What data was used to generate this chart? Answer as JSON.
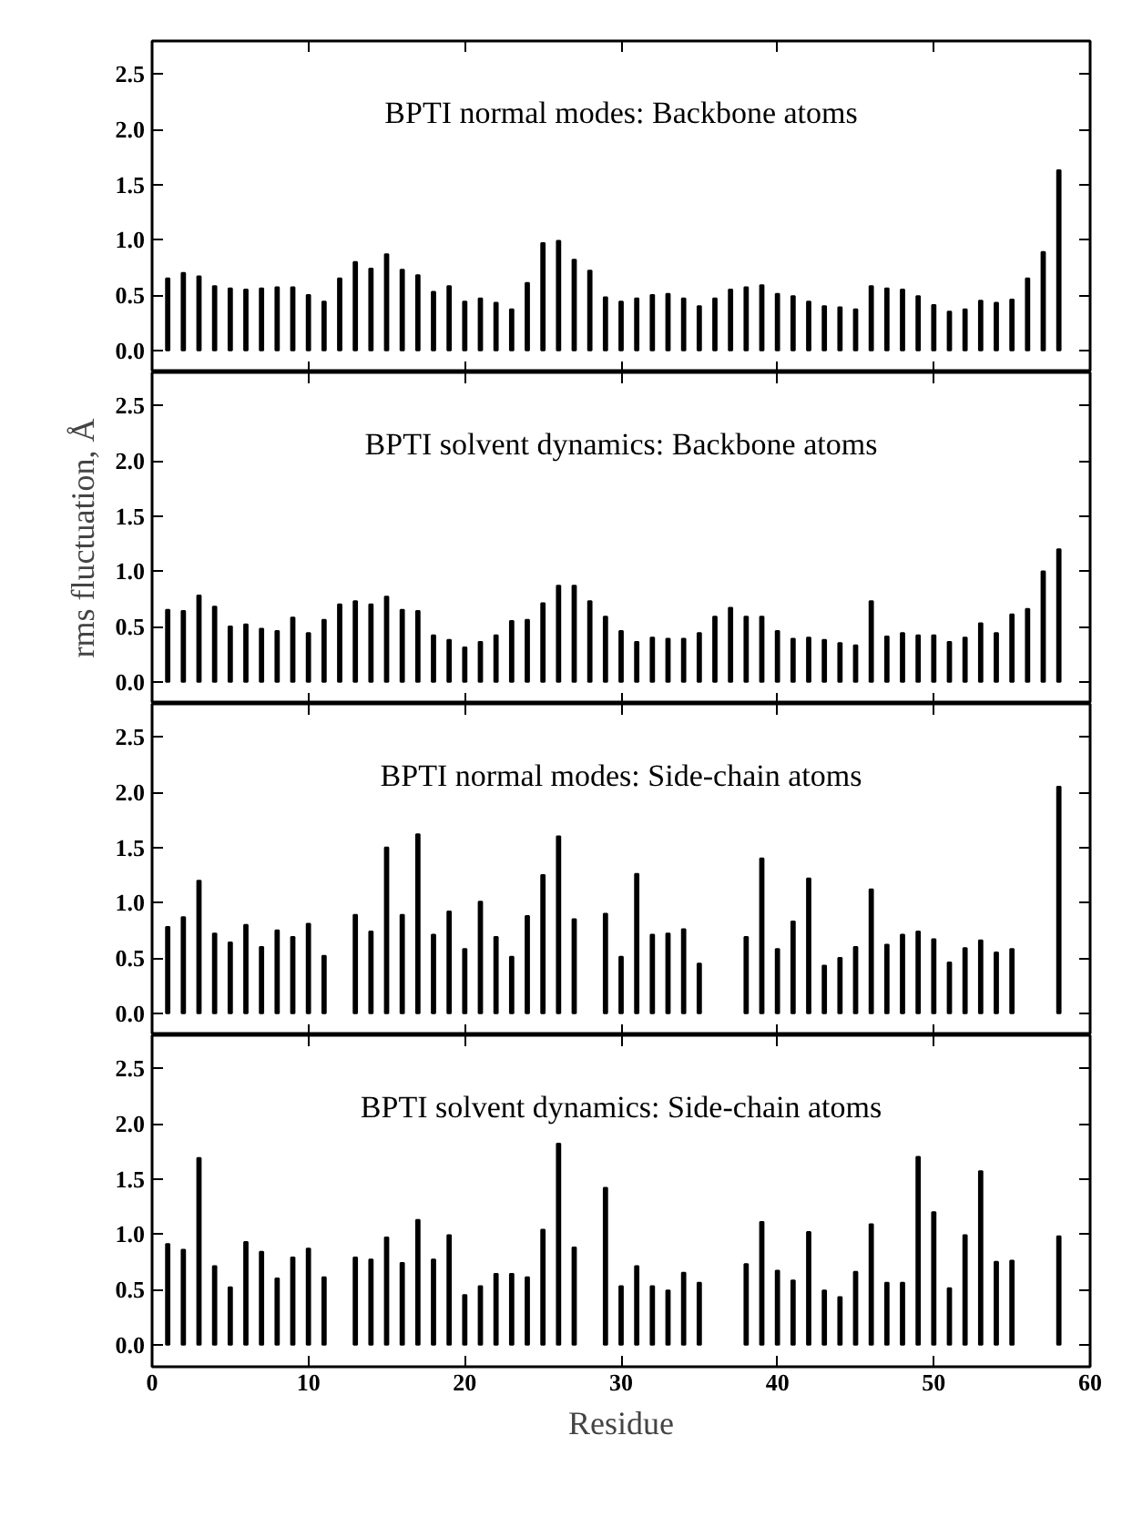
{
  "chart_data": [
    {
      "type": "bar",
      "title": "BPTI normal modes: Backbone atoms",
      "color": "#000000",
      "tick_labels": "y",
      "xlim": [
        0,
        60
      ],
      "xticks": [
        0,
        10,
        20,
        30,
        40,
        50,
        60
      ],
      "ylim": [
        -0.2,
        2.8
      ],
      "yticks": [
        {
          "value": 0,
          "label": "0.0"
        },
        {
          "value": 0.5,
          "label": "0.5"
        },
        {
          "value": 1,
          "label": "1.0"
        },
        {
          "value": 1.5,
          "label": "1.5"
        },
        {
          "value": 2,
          "label": "2.0"
        },
        {
          "value": 2.5,
          "label": "2.5"
        }
      ],
      "x": [
        1,
        2,
        3,
        4,
        5,
        6,
        7,
        8,
        9,
        10,
        11,
        12,
        13,
        14,
        15,
        16,
        17,
        18,
        19,
        20,
        21,
        22,
        23,
        24,
        25,
        26,
        27,
        28,
        29,
        30,
        31,
        32,
        33,
        34,
        35,
        36,
        37,
        38,
        39,
        40,
        41,
        42,
        43,
        44,
        45,
        46,
        47,
        48,
        49,
        50,
        51,
        52,
        53,
        54,
        55,
        56,
        57,
        58
      ],
      "values": [
        0.65,
        0.7,
        0.67,
        0.58,
        0.56,
        0.55,
        0.56,
        0.57,
        0.57,
        0.5,
        0.44,
        0.65,
        0.8,
        0.74,
        0.87,
        0.73,
        0.68,
        0.53,
        0.58,
        0.44,
        0.47,
        0.43,
        0.37,
        0.61,
        0.97,
        0.99,
        0.82,
        0.72,
        0.48,
        0.44,
        0.47,
        0.5,
        0.51,
        0.47,
        0.4,
        0.47,
        0.55,
        0.57,
        0.59,
        0.51,
        0.49,
        0.44,
        0.4,
        0.39,
        0.37,
        0.58,
        0.56,
        0.55,
        0.49,
        0.41,
        0.35,
        0.37,
        0.45,
        0.43,
        0.46,
        0.65,
        0.89,
        1.63
      ]
    },
    {
      "type": "bar",
      "title": "BPTI solvent dynamics: Backbone atoms",
      "ylabel": "rms fluctuation, Å",
      "color": "#000000",
      "tick_labels": "y",
      "xlim": [
        0,
        60
      ],
      "xticks": [
        0,
        10,
        20,
        30,
        40,
        50,
        60
      ],
      "ylim": [
        -0.2,
        2.8
      ],
      "yticks": [
        {
          "value": 0,
          "label": "0.0"
        },
        {
          "value": 0.5,
          "label": "0.5"
        },
        {
          "value": 1,
          "label": "1.0"
        },
        {
          "value": 1.5,
          "label": "1.5"
        },
        {
          "value": 2,
          "label": "2.0"
        },
        {
          "value": 2.5,
          "label": "2.5"
        }
      ],
      "x": [
        1,
        2,
        3,
        4,
        5,
        6,
        7,
        8,
        9,
        10,
        11,
        12,
        13,
        14,
        15,
        16,
        17,
        18,
        19,
        20,
        21,
        22,
        23,
        24,
        25,
        26,
        27,
        28,
        29,
        30,
        31,
        32,
        33,
        34,
        35,
        36,
        37,
        38,
        39,
        40,
        41,
        42,
        43,
        44,
        45,
        46,
        47,
        48,
        49,
        50,
        51,
        52,
        53,
        54,
        55,
        56,
        57,
        58
      ],
      "values": [
        0.65,
        0.64,
        0.78,
        0.68,
        0.5,
        0.52,
        0.48,
        0.46,
        0.58,
        0.44,
        0.56,
        0.7,
        0.73,
        0.7,
        0.77,
        0.65,
        0.64,
        0.42,
        0.38,
        0.31,
        0.36,
        0.42,
        0.55,
        0.56,
        0.71,
        0.87,
        0.87,
        0.73,
        0.59,
        0.46,
        0.36,
        0.4,
        0.39,
        0.39,
        0.44,
        0.59,
        0.67,
        0.59,
        0.59,
        0.46,
        0.39,
        0.4,
        0.38,
        0.35,
        0.33,
        0.73,
        0.41,
        0.44,
        0.42,
        0.42,
        0.36,
        0.4,
        0.53,
        0.44,
        0.61,
        0.66,
        1.0,
        1.2
      ]
    },
    {
      "type": "bar",
      "title": "BPTI normal modes: Side-chain atoms",
      "color": "#000000",
      "tick_labels": "y",
      "xlim": [
        0,
        60
      ],
      "xticks": [
        0,
        10,
        20,
        30,
        40,
        50,
        60
      ],
      "ylim": [
        -0.2,
        2.8
      ],
      "yticks": [
        {
          "value": 0,
          "label": "0.0"
        },
        {
          "value": 0.5,
          "label": "0.5"
        },
        {
          "value": 1,
          "label": "1.0"
        },
        {
          "value": 1.5,
          "label": "1.5"
        },
        {
          "value": 2,
          "label": "2.0"
        },
        {
          "value": 2.5,
          "label": "2.5"
        }
      ],
      "x": [
        1,
        2,
        3,
        4,
        5,
        6,
        7,
        8,
        9,
        10,
        11,
        12,
        13,
        14,
        15,
        16,
        17,
        18,
        19,
        20,
        21,
        22,
        23,
        24,
        25,
        26,
        27,
        28,
        29,
        30,
        31,
        32,
        33,
        34,
        35,
        36,
        37,
        38,
        39,
        40,
        41,
        42,
        43,
        44,
        45,
        46,
        47,
        48,
        49,
        50,
        51,
        52,
        53,
        54,
        55,
        56,
        57,
        58
      ],
      "values": [
        0.78,
        0.87,
        1.2,
        0.72,
        0.64,
        0.8,
        0.6,
        0.75,
        0.69,
        0.81,
        0.52,
        null,
        0.89,
        0.74,
        1.5,
        0.89,
        1.62,
        0.71,
        0.92,
        0.58,
        1.01,
        0.69,
        0.51,
        0.88,
        1.25,
        1.6,
        0.85,
        null,
        0.9,
        0.51,
        1.26,
        0.71,
        0.72,
        0.76,
        0.45,
        null,
        null,
        0.69,
        1.4,
        0.58,
        0.83,
        1.22,
        0.43,
        0.5,
        0.6,
        1.12,
        0.62,
        0.71,
        0.74,
        0.67,
        0.46,
        0.59,
        0.66,
        0.55,
        0.58,
        null,
        null,
        2.05
      ]
    },
    {
      "type": "bar",
      "title": "BPTI solvent dynamics: Side-chain atoms",
      "xlabel": "Residue",
      "color": "#000000",
      "xlim": [
        0,
        60
      ],
      "xticks": [
        0,
        10,
        20,
        30,
        40,
        50,
        60
      ],
      "ylim": [
        -0.2,
        2.8
      ],
      "yticks": [
        {
          "value": 0,
          "label": "0.0"
        },
        {
          "value": 0.5,
          "label": "0.5"
        },
        {
          "value": 1,
          "label": "1.0"
        },
        {
          "value": 1.5,
          "label": "1.5"
        },
        {
          "value": 2,
          "label": "2.0"
        },
        {
          "value": 2.5,
          "label": "2.5"
        }
      ],
      "x": [
        1,
        2,
        3,
        4,
        5,
        6,
        7,
        8,
        9,
        10,
        11,
        12,
        13,
        14,
        15,
        16,
        17,
        18,
        19,
        20,
        21,
        22,
        23,
        24,
        25,
        26,
        27,
        28,
        29,
        30,
        31,
        32,
        33,
        34,
        35,
        36,
        37,
        38,
        39,
        40,
        41,
        42,
        43,
        44,
        45,
        46,
        47,
        48,
        49,
        50,
        51,
        52,
        53,
        54,
        55,
        56,
        57,
        58
      ],
      "values": [
        0.91,
        0.86,
        1.69,
        0.71,
        0.52,
        0.93,
        0.84,
        0.6,
        0.79,
        0.87,
        0.61,
        null,
        0.79,
        0.77,
        0.97,
        0.74,
        1.13,
        0.77,
        0.99,
        0.45,
        0.53,
        0.64,
        0.64,
        0.61,
        1.04,
        1.82,
        0.88,
        null,
        1.42,
        0.53,
        0.71,
        0.53,
        0.49,
        0.65,
        0.56,
        null,
        null,
        0.73,
        1.11,
        0.67,
        0.58,
        1.02,
        0.49,
        0.43,
        0.66,
        1.09,
        0.56,
        0.56,
        1.7,
        1.2,
        0.51,
        0.99,
        1.57,
        0.75,
        0.76,
        null,
        null,
        0.98
      ]
    }
  ]
}
